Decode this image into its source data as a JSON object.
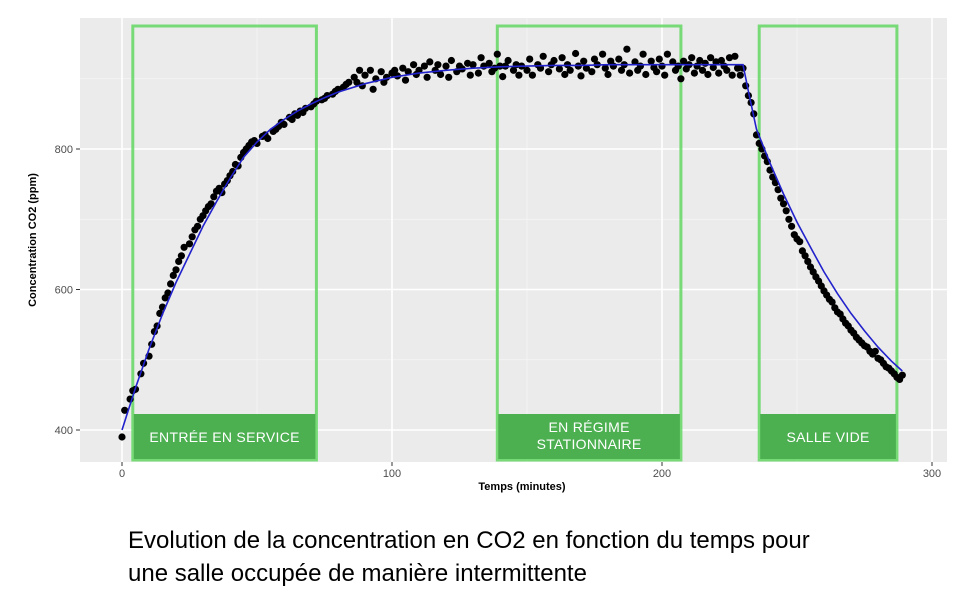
{
  "chart_data": {
    "type": "scatter",
    "title": "",
    "xlabel": "Temps (minutes)",
    "ylabel": "Concentration CO2 (ppm)",
    "xlim": [
      -15,
      305
    ],
    "ylim": [
      375,
      1005
    ],
    "x_ticks": [
      0,
      100,
      200,
      300
    ],
    "y_ticks": [
      400,
      600,
      800
    ],
    "grid": true,
    "legend": "none",
    "colors": {
      "points": "#000000",
      "fit_line": "#2222cc",
      "panel": "#ebebeb",
      "zone_fill": "#4caf50",
      "zone_border": "#6ad86a"
    },
    "points": [
      [
        0,
        390
      ],
      [
        1,
        428
      ],
      [
        3,
        444
      ],
      [
        4,
        456
      ],
      [
        5,
        458
      ],
      [
        7,
        480
      ],
      [
        8,
        495
      ],
      [
        10,
        505
      ],
      [
        11,
        522
      ],
      [
        12,
        540
      ],
      [
        13,
        548
      ],
      [
        14,
        566
      ],
      [
        15,
        575
      ],
      [
        16,
        588
      ],
      [
        17,
        595
      ],
      [
        18,
        608
      ],
      [
        19,
        620
      ],
      [
        20,
        628
      ],
      [
        21,
        640
      ],
      [
        22,
        648
      ],
      [
        23,
        660
      ],
      [
        25,
        665
      ],
      [
        26,
        675
      ],
      [
        27,
        685
      ],
      [
        28,
        690
      ],
      [
        29,
        700
      ],
      [
        30,
        705
      ],
      [
        31,
        712
      ],
      [
        32,
        718
      ],
      [
        33,
        722
      ],
      [
        34,
        732
      ],
      [
        35,
        740
      ],
      [
        36,
        744
      ],
      [
        37,
        738
      ],
      [
        38,
        750
      ],
      [
        39,
        755
      ],
      [
        40,
        762
      ],
      [
        41,
        768
      ],
      [
        42,
        778
      ],
      [
        43,
        776
      ],
      [
        44,
        788
      ],
      [
        45,
        795
      ],
      [
        46,
        800
      ],
      [
        47,
        805
      ],
      [
        48,
        810
      ],
      [
        49,
        812
      ],
      [
        50,
        808
      ],
      [
        52,
        818
      ],
      [
        53,
        820
      ],
      [
        54,
        815
      ],
      [
        56,
        825
      ],
      [
        57,
        828
      ],
      [
        58,
        832
      ],
      [
        59,
        838
      ],
      [
        60,
        835
      ],
      [
        62,
        845
      ],
      [
        63,
        842
      ],
      [
        64,
        850
      ],
      [
        65,
        848
      ],
      [
        66,
        854
      ],
      [
        67,
        852
      ],
      [
        68,
        858
      ],
      [
        70,
        860
      ],
      [
        71,
        864
      ],
      [
        72,
        868
      ],
      [
        74,
        870
      ],
      [
        75,
        872
      ],
      [
        76,
        876
      ],
      [
        78,
        878
      ],
      [
        79,
        882
      ],
      [
        80,
        885
      ],
      [
        82,
        888
      ],
      [
        83,
        892
      ],
      [
        84,
        895
      ],
      [
        86,
        902
      ],
      [
        87,
        895
      ],
      [
        88,
        912
      ],
      [
        89,
        890
      ],
      [
        90,
        905
      ],
      [
        92,
        912
      ],
      [
        93,
        885
      ],
      [
        94,
        900
      ],
      [
        96,
        910
      ],
      [
        97,
        895
      ],
      [
        98,
        902
      ],
      [
        100,
        908
      ],
      [
        101,
        912
      ],
      [
        102,
        904
      ],
      [
        104,
        915
      ],
      [
        105,
        898
      ],
      [
        106,
        910
      ],
      [
        108,
        920
      ],
      [
        109,
        906
      ],
      [
        110,
        912
      ],
      [
        112,
        918
      ],
      [
        113,
        902
      ],
      [
        114,
        924
      ],
      [
        116,
        912
      ],
      [
        117,
        920
      ],
      [
        118,
        906
      ],
      [
        120,
        918
      ],
      [
        121,
        902
      ],
      [
        122,
        926
      ],
      [
        124,
        910
      ],
      [
        125,
        918
      ],
      [
        126,
        914
      ],
      [
        128,
        922
      ],
      [
        129,
        905
      ],
      [
        130,
        920
      ],
      [
        132,
        908
      ],
      [
        133,
        930
      ],
      [
        134,
        918
      ],
      [
        136,
        922
      ],
      [
        137,
        910
      ],
      [
        138,
        915
      ],
      [
        139,
        935
      ],
      [
        140,
        918
      ],
      [
        141,
        903
      ],
      [
        142,
        918
      ],
      [
        143,
        926
      ],
      [
        145,
        912
      ],
      [
        146,
        920
      ],
      [
        147,
        905
      ],
      [
        148,
        918
      ],
      [
        150,
        912
      ],
      [
        151,
        928
      ],
      [
        152,
        905
      ],
      [
        154,
        920
      ],
      [
        155,
        915
      ],
      [
        156,
        932
      ],
      [
        158,
        910
      ],
      [
        159,
        920
      ],
      [
        160,
        926
      ],
      [
        162,
        914
      ],
      [
        163,
        930
      ],
      [
        164,
        906
      ],
      [
        165,
        920
      ],
      [
        166,
        912
      ],
      [
        168,
        936
      ],
      [
        169,
        918
      ],
      [
        170,
        904
      ],
      [
        171,
        925
      ],
      [
        172,
        915
      ],
      [
        174,
        910
      ],
      [
        175,
        928
      ],
      [
        176,
        920
      ],
      [
        178,
        935
      ],
      [
        179,
        915
      ],
      [
        180,
        906
      ],
      [
        181,
        925
      ],
      [
        182,
        918
      ],
      [
        184,
        928
      ],
      [
        185,
        912
      ],
      [
        186,
        920
      ],
      [
        187,
        942
      ],
      [
        188,
        908
      ],
      [
        190,
        924
      ],
      [
        191,
        912
      ],
      [
        192,
        918
      ],
      [
        193,
        935
      ],
      [
        194,
        906
      ],
      [
        196,
        925
      ],
      [
        197,
        916
      ],
      [
        198,
        910
      ],
      [
        199,
        928
      ],
      [
        200,
        918
      ],
      [
        201,
        905
      ],
      [
        202,
        935
      ],
      [
        204,
        924
      ],
      [
        205,
        912
      ],
      [
        206,
        918
      ],
      [
        207,
        900
      ],
      [
        208,
        925
      ],
      [
        209,
        914
      ],
      [
        210,
        920
      ],
      [
        211,
        930
      ],
      [
        212,
        908
      ],
      [
        213,
        918
      ],
      [
        214,
        926
      ],
      [
        215,
        912
      ],
      [
        216,
        922
      ],
      [
        217,
        906
      ],
      [
        218,
        930
      ],
      [
        219,
        916
      ],
      [
        220,
        924
      ],
      [
        221,
        908
      ],
      [
        222,
        926
      ],
      [
        223,
        918
      ],
      [
        224,
        912
      ],
      [
        225,
        930
      ],
      [
        226,
        905
      ],
      [
        227,
        932
      ],
      [
        228,
        915
      ],
      [
        229,
        905
      ],
      [
        230,
        915
      ],
      [
        231,
        890
      ],
      [
        232,
        876
      ],
      [
        233,
        866
      ],
      [
        234,
        850
      ],
      [
        235,
        820
      ],
      [
        236,
        808
      ],
      [
        237,
        800
      ],
      [
        238,
        790
      ],
      [
        239,
        782
      ],
      [
        240,
        770
      ],
      [
        241,
        760
      ],
      [
        242,
        752
      ],
      [
        243,
        742
      ],
      [
        244,
        730
      ],
      [
        245,
        722
      ],
      [
        246,
        712
      ],
      [
        247,
        700
      ],
      [
        248,
        690
      ],
      [
        249,
        678
      ],
      [
        250,
        672
      ],
      [
        251,
        668
      ],
      [
        252,
        655
      ],
      [
        253,
        648
      ],
      [
        254,
        640
      ],
      [
        255,
        632
      ],
      [
        256,
        625
      ],
      [
        257,
        618
      ],
      [
        258,
        612
      ],
      [
        259,
        605
      ],
      [
        260,
        598
      ],
      [
        261,
        592
      ],
      [
        262,
        586
      ],
      [
        263,
        582
      ],
      [
        264,
        574
      ],
      [
        265,
        568
      ],
      [
        266,
        565
      ],
      [
        267,
        558
      ],
      [
        268,
        552
      ],
      [
        269,
        548
      ],
      [
        270,
        542
      ],
      [
        271,
        538
      ],
      [
        272,
        532
      ],
      [
        273,
        528
      ],
      [
        274,
        524
      ],
      [
        275,
        520
      ],
      [
        276,
        518
      ],
      [
        277,
        512
      ],
      [
        278,
        508
      ],
      [
        279,
        512
      ],
      [
        280,
        502
      ],
      [
        281,
        500
      ],
      [
        282,
        495
      ],
      [
        283,
        490
      ],
      [
        284,
        488
      ],
      [
        285,
        484
      ],
      [
        286,
        480
      ],
      [
        287,
        475
      ],
      [
        288,
        472
      ],
      [
        289,
        478
      ]
    ],
    "fit_line": [
      [
        0,
        400
      ],
      [
        5,
        460
      ],
      [
        10,
        515
      ],
      [
        15,
        565
      ],
      [
        20,
        610
      ],
      [
        25,
        650
      ],
      [
        30,
        690
      ],
      [
        35,
        725
      ],
      [
        40,
        758
      ],
      [
        45,
        788
      ],
      [
        50,
        810
      ],
      [
        55,
        828
      ],
      [
        60,
        842
      ],
      [
        65,
        854
      ],
      [
        70,
        864
      ],
      [
        75,
        873
      ],
      [
        80,
        881
      ],
      [
        90,
        893
      ],
      [
        100,
        902
      ],
      [
        110,
        908
      ],
      [
        120,
        912
      ],
      [
        130,
        915
      ],
      [
        140,
        917
      ],
      [
        150,
        918
      ],
      [
        160,
        919
      ],
      [
        170,
        919
      ],
      [
        180,
        920
      ],
      [
        190,
        920
      ],
      [
        200,
        920
      ],
      [
        210,
        920
      ],
      [
        220,
        920
      ],
      [
        230,
        920
      ],
      [
        232,
        882
      ],
      [
        235,
        828
      ],
      [
        240,
        780
      ],
      [
        245,
        736
      ],
      [
        250,
        696
      ],
      [
        255,
        660
      ],
      [
        260,
        625
      ],
      [
        265,
        594
      ],
      [
        270,
        566
      ],
      [
        275,
        541
      ],
      [
        280,
        518
      ],
      [
        285,
        498
      ],
      [
        289,
        484
      ]
    ],
    "zones": [
      {
        "label_lines": [
          "ENTRÉE EN SERVICE"
        ],
        "x_start": 4,
        "x_end": 72
      },
      {
        "label_lines": [
          "EN RÉGIME",
          "STATIONNAIRE"
        ],
        "x_start": 139,
        "x_end": 207
      },
      {
        "label_lines": [
          "SALLE VIDE"
        ],
        "x_start": 236,
        "x_end": 287
      }
    ]
  },
  "caption": {
    "line1": "Evolution de la concentration en CO2 en fonction du temps pour",
    "line2": "une salle occupée de manière intermittente"
  }
}
